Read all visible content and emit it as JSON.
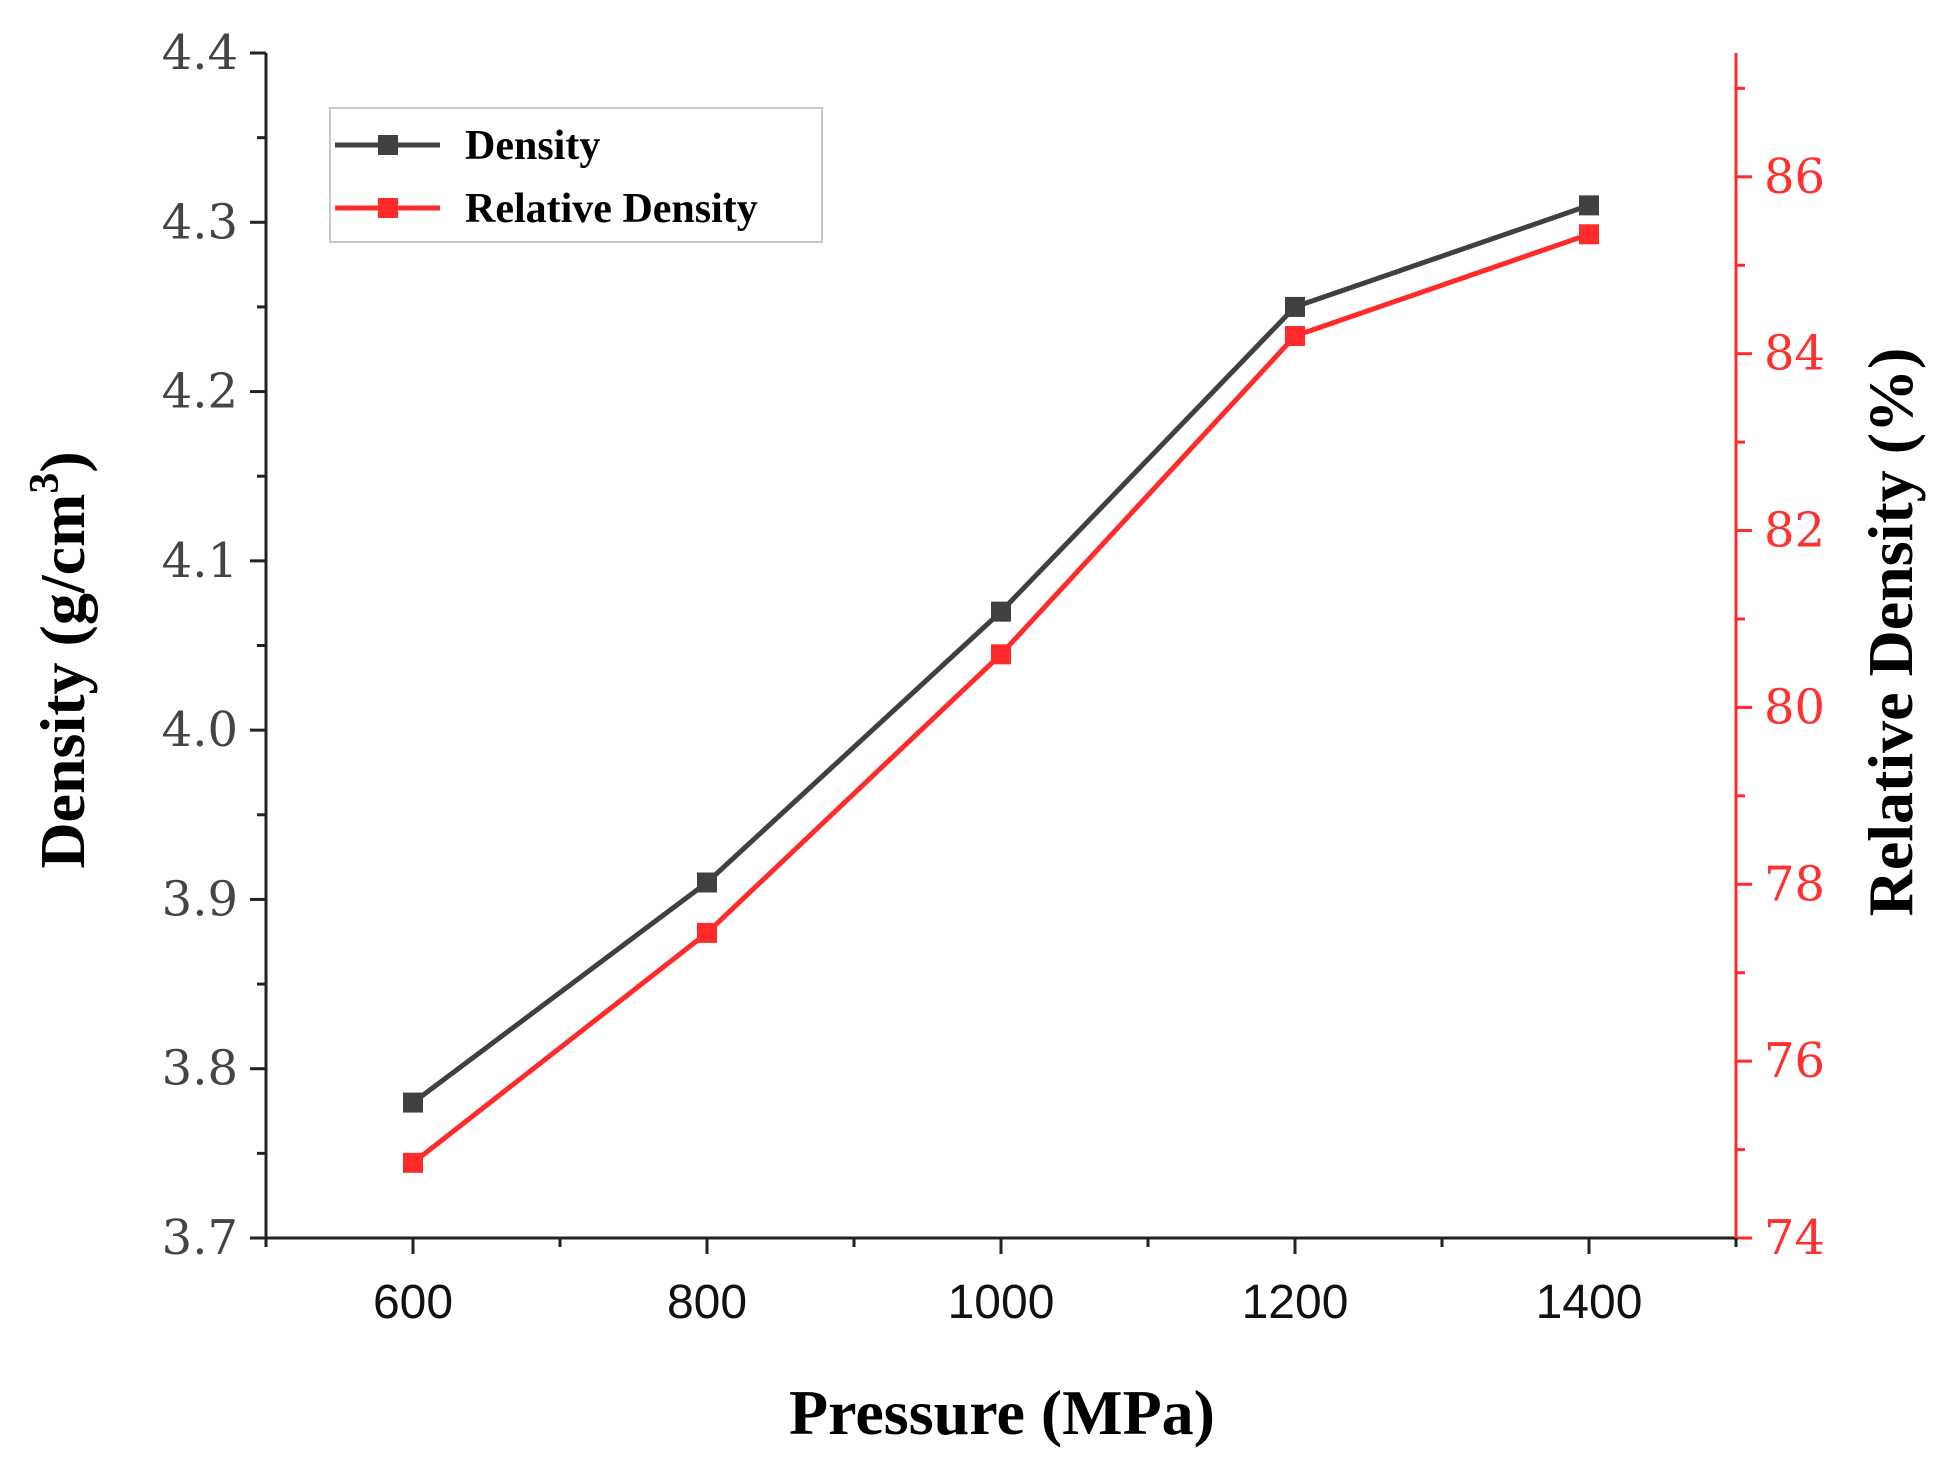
{
  "chart_data": {
    "type": "line",
    "xlabel": "Pressure (MPa)",
    "ylabel_left": "Density (g/cm",
    "ylabel_left_sup": "3",
    "ylabel_left_suffix": ")",
    "ylabel_right": "Relative Density (%)",
    "x": [
      600,
      800,
      1000,
      1200,
      1400
    ],
    "xlim": [
      500,
      1500
    ],
    "xticks": [
      600,
      800,
      1000,
      1200,
      1400
    ],
    "xtick_labels": [
      "600",
      "800",
      "1000",
      "1200",
      "1400"
    ],
    "ylim_left": [
      3.7,
      4.4
    ],
    "yticks_left": [
      3.7,
      3.8,
      3.9,
      4.0,
      4.1,
      4.2,
      4.3,
      4.4
    ],
    "ytick_labels_left": [
      "3.7",
      "3.8",
      "3.9",
      "4.0",
      "4.1",
      "4.2",
      "4.3",
      "4.4"
    ],
    "ylim_right": [
      74,
      87.4
    ],
    "yticks_right": [
      74,
      76,
      78,
      80,
      82,
      84,
      86
    ],
    "ytick_labels_right": [
      "74",
      "76",
      "78",
      "80",
      "82",
      "84",
      "86"
    ],
    "series": [
      {
        "name": "Density",
        "axis": "left",
        "color": "#404040",
        "marker": "square",
        "values": [
          3.78,
          3.91,
          4.07,
          4.25,
          4.31
        ]
      },
      {
        "name": "Relative Density",
        "axis": "right",
        "color": "#ff2a2a",
        "marker": "square",
        "values": [
          74.85,
          77.45,
          80.6,
          84.2,
          85.35
        ]
      }
    ],
    "legend": "top-left",
    "grid": false
  }
}
